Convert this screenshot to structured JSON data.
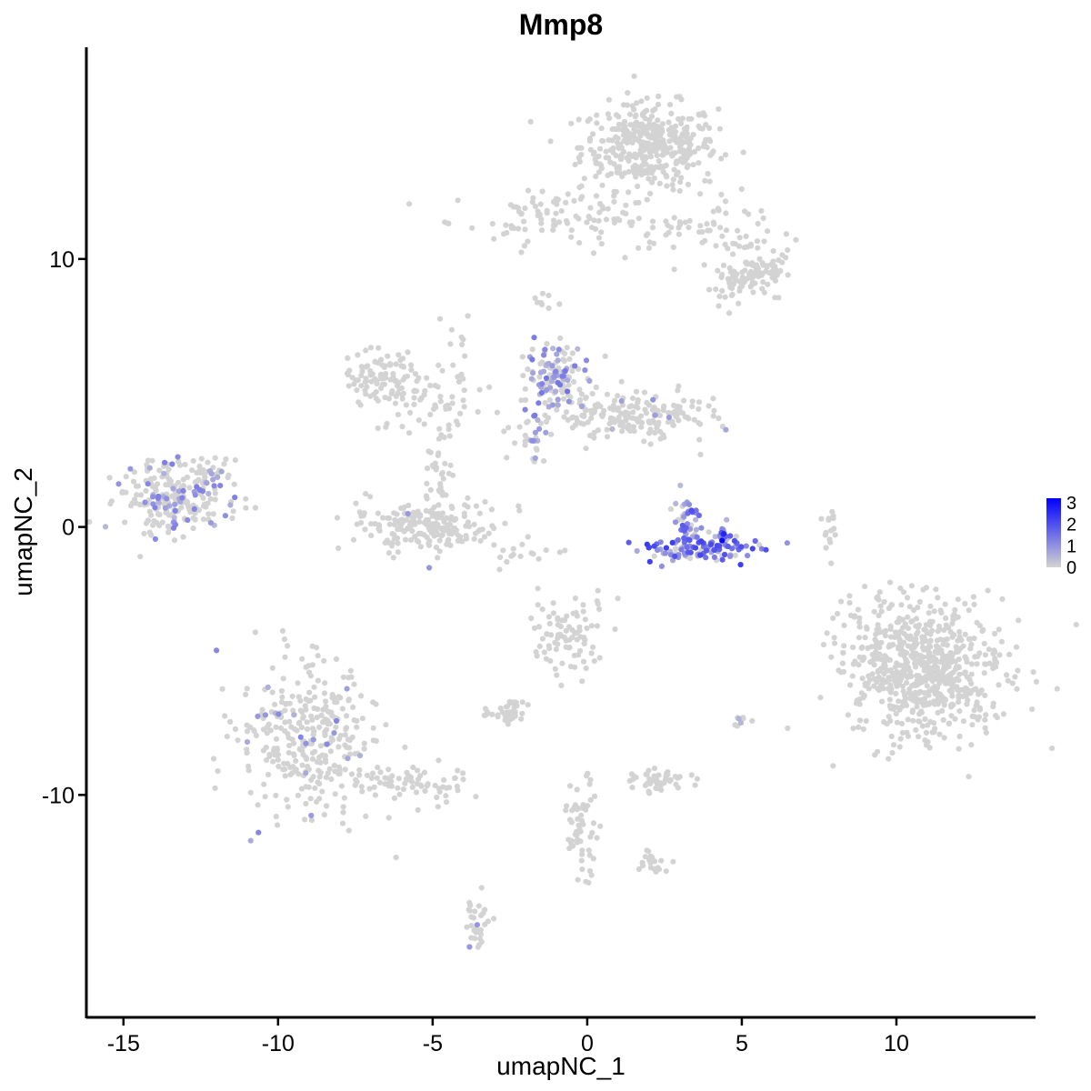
{
  "chart_data": {
    "type": "scatter",
    "title": "Mmp8",
    "xlabel": "umapNC_1",
    "ylabel": "umapNC_2",
    "xlim": [
      -16.2,
      14.5
    ],
    "ylim": [
      -18.3,
      17.9
    ],
    "x_ticks": [
      -15,
      -10,
      -5,
      0,
      5,
      10
    ],
    "x_tick_labels": [
      "-15",
      "-10",
      "-5",
      "0",
      "5",
      "10"
    ],
    "y_ticks": [
      -10,
      0,
      10
    ],
    "y_tick_labels": [
      "-10",
      "0",
      "10"
    ],
    "grid": false,
    "colors": {
      "low": "#d3d3d3",
      "high": "#0000ff"
    },
    "legend": {
      "position": "right",
      "min": 0,
      "max": 3.2,
      "ticks": [
        0,
        1,
        2,
        3
      ],
      "tick_labels": [
        "0",
        "1",
        "2",
        "3"
      ]
    },
    "clusters": [
      {
        "cx": 2.0,
        "cy": 14.2,
        "sx": 1.1,
        "sy": 0.8,
        "n": 400,
        "expr_rate": 0,
        "expr_max": 0
      },
      {
        "cx": -1.2,
        "cy": 11.6,
        "sx": 1.6,
        "sy": 0.45,
        "n": 90,
        "expr_rate": 0.01,
        "expr_max": 1
      },
      {
        "cx": 3.6,
        "cy": 11.0,
        "sx": 1.4,
        "sy": 0.6,
        "n": 70,
        "expr_rate": 0,
        "expr_max": 0
      },
      {
        "cx": 5.5,
        "cy": 9.6,
        "sx": 0.6,
        "sy": 0.5,
        "n": 80,
        "expr_rate": 0,
        "expr_max": 0
      },
      {
        "cx": 4.6,
        "cy": 9.0,
        "sx": 0.4,
        "sy": 0.35,
        "n": 35,
        "expr_rate": 0,
        "expr_max": 0
      },
      {
        "cx": -6.6,
        "cy": 5.5,
        "sx": 0.6,
        "sy": 0.5,
        "n": 90,
        "expr_rate": 0,
        "expr_max": 0
      },
      {
        "cx": -5.3,
        "cy": 4.6,
        "sx": 1.0,
        "sy": 0.6,
        "n": 50,
        "expr_rate": 0.01,
        "expr_max": 1
      },
      {
        "cx": -4.3,
        "cy": 5.8,
        "sx": 0.3,
        "sy": 1.2,
        "n": 20,
        "expr_rate": 0.03,
        "expr_max": 1
      },
      {
        "cx": -1.0,
        "cy": 5.5,
        "sx": 0.45,
        "sy": 0.7,
        "n": 130,
        "expr_rate": 0.45,
        "expr_max": 1.5
      },
      {
        "cx": 1.6,
        "cy": 4.2,
        "sx": 1.2,
        "sy": 0.45,
        "n": 180,
        "expr_rate": 0.03,
        "expr_max": 1
      },
      {
        "cx": -1.8,
        "cy": 3.4,
        "sx": 0.4,
        "sy": 0.6,
        "n": 30,
        "expr_rate": 0.2,
        "expr_max": 1.2
      },
      {
        "cx": -13.4,
        "cy": 1.0,
        "sx": 0.9,
        "sy": 0.7,
        "n": 230,
        "expr_rate": 0.18,
        "expr_max": 1.3
      },
      {
        "cx": -12.2,
        "cy": 2.1,
        "sx": 0.4,
        "sy": 0.35,
        "n": 25,
        "expr_rate": 0.25,
        "expr_max": 1.3
      },
      {
        "cx": -5.2,
        "cy": 0.0,
        "sx": 1.2,
        "sy": 0.45,
        "n": 200,
        "expr_rate": 0.01,
        "expr_max": 1
      },
      {
        "cx": -4.8,
        "cy": 1.6,
        "sx": 0.25,
        "sy": 1.3,
        "n": 40,
        "expr_rate": 0,
        "expr_max": 0
      },
      {
        "cx": 3.6,
        "cy": -0.8,
        "sx": 0.75,
        "sy": 0.25,
        "n": 120,
        "expr_rate": 0.85,
        "expr_max": 2.3
      },
      {
        "cx": 3.2,
        "cy": 0.3,
        "sx": 0.25,
        "sy": 0.5,
        "n": 40,
        "expr_rate": 0.75,
        "expr_max": 2
      },
      {
        "cx": 4.45,
        "cy": -0.1,
        "sx": 0.05,
        "sy": 0.22,
        "n": 10,
        "expr_rate": 1.0,
        "expr_max": 3.2
      },
      {
        "cx": 10.9,
        "cy": -5.3,
        "sx": 1.3,
        "sy": 1.3,
        "n": 700,
        "expr_rate": 0,
        "expr_max": 0
      },
      {
        "cx": -0.6,
        "cy": -4.0,
        "sx": 0.7,
        "sy": 0.7,
        "n": 90,
        "expr_rate": 0.01,
        "expr_max": 1
      },
      {
        "cx": -9.0,
        "cy": -8.1,
        "sx": 1.1,
        "sy": 1.4,
        "n": 330,
        "expr_rate": 0.05,
        "expr_max": 1.2
      },
      {
        "cx": -5.9,
        "cy": -9.6,
        "sx": 1.0,
        "sy": 0.4,
        "n": 70,
        "expr_rate": 0,
        "expr_max": 0
      },
      {
        "cx": -2.6,
        "cy": -6.9,
        "sx": 0.4,
        "sy": 0.2,
        "n": 40,
        "expr_rate": 0.02,
        "expr_max": 1
      },
      {
        "cx": 2.4,
        "cy": -9.5,
        "sx": 0.45,
        "sy": 0.2,
        "n": 45,
        "expr_rate": 0,
        "expr_max": 0
      },
      {
        "cx": -0.2,
        "cy": -11.2,
        "sx": 0.3,
        "sy": 0.9,
        "n": 60,
        "expr_rate": 0,
        "expr_max": 0
      },
      {
        "cx": 2.2,
        "cy": -12.5,
        "sx": 0.3,
        "sy": 0.25,
        "n": 20,
        "expr_rate": 0,
        "expr_max": 0
      },
      {
        "cx": -3.5,
        "cy": -14.8,
        "sx": 0.2,
        "sy": 0.5,
        "n": 30,
        "expr_rate": 0.03,
        "expr_max": 1
      },
      {
        "cx": 7.9,
        "cy": -0.3,
        "sx": 0.15,
        "sy": 0.5,
        "n": 15,
        "expr_rate": 0,
        "expr_max": 0
      },
      {
        "cx": -1.9,
        "cy": -1.0,
        "sx": 0.7,
        "sy": 0.25,
        "n": 15,
        "expr_rate": 0,
        "expr_max": 0
      },
      {
        "cx": -1.5,
        "cy": 8.5,
        "sx": 0.4,
        "sy": 0.15,
        "n": 8,
        "expr_rate": 0,
        "expr_max": 0
      },
      {
        "cx": 5.0,
        "cy": -7.2,
        "sx": 0.15,
        "sy": 0.15,
        "n": 8,
        "expr_rate": 0.2,
        "expr_max": 1.2
      }
    ]
  }
}
